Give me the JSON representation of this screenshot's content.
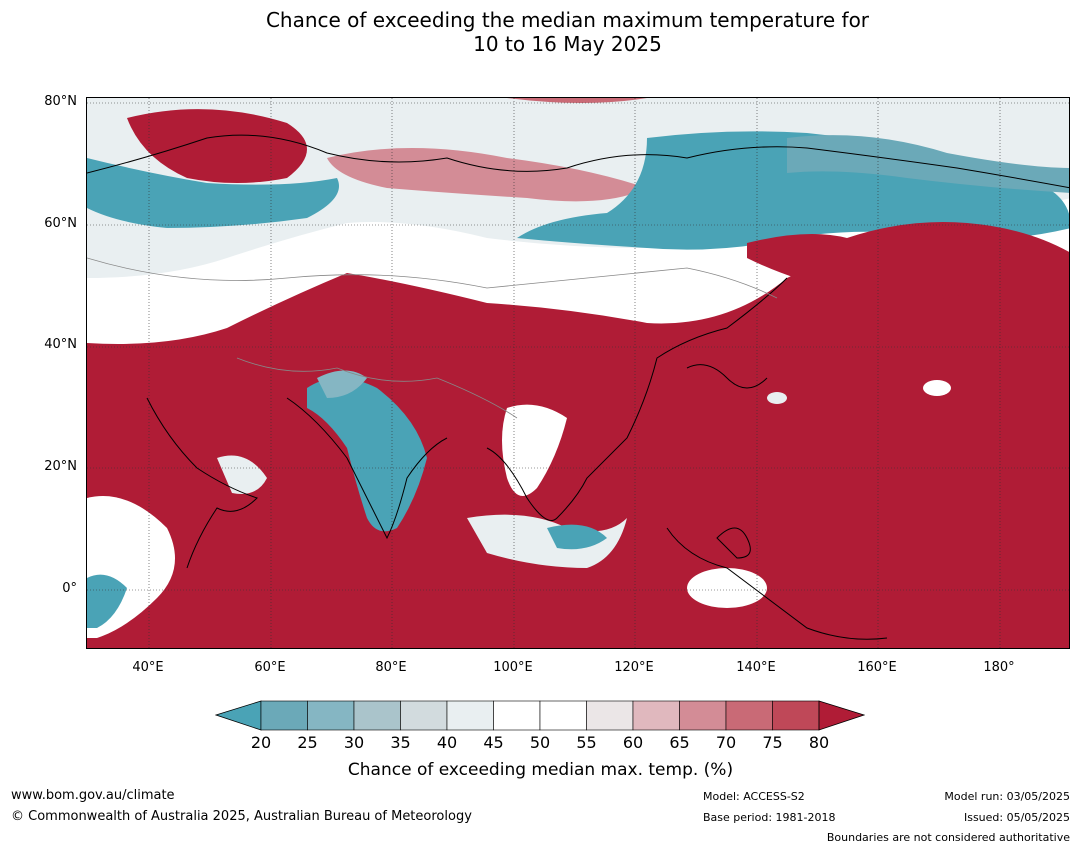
{
  "title_line1": "Chance of exceeding the median maximum temperature for",
  "title_line2": "10 to 16 May 2025",
  "lat_labels": [
    "80°N",
    "60°N",
    "40°N",
    "20°N",
    "0°"
  ],
  "lon_labels": [
    "40°E",
    "60°E",
    "80°E",
    "100°E",
    "120°E",
    "140°E",
    "160°E",
    "180°"
  ],
  "colorbar": {
    "ticks": [
      "20",
      "25",
      "30",
      "35",
      "40",
      "45",
      "50",
      "55",
      "60",
      "65",
      "70",
      "75",
      "80"
    ],
    "colors": [
      "#4aa3b6",
      "#6ba9b8",
      "#85b6c3",
      "#aac4cb",
      "#d2dbde",
      "#e9eff1",
      "#ffffff",
      "#ffffff",
      "#ebe6e7",
      "#e0b8be",
      "#d38c96",
      "#c96a76",
      "#bf4858",
      "#b01c36"
    ],
    "label": "Chance of exceeding median max. temp. (%)"
  },
  "footer": {
    "website": "www.bom.gov.au/climate",
    "copyright": "© Commonwealth of Australia 2025, Australian Bureau of Meteorology",
    "model": "Model: ACCESS-S2",
    "base_period": "Base period: 1981-2018",
    "model_run": "Model run: 03/05/2025",
    "issued": "Issued: 05/05/2025",
    "disclaimer": "Boundaries are not considered authoritative"
  }
}
